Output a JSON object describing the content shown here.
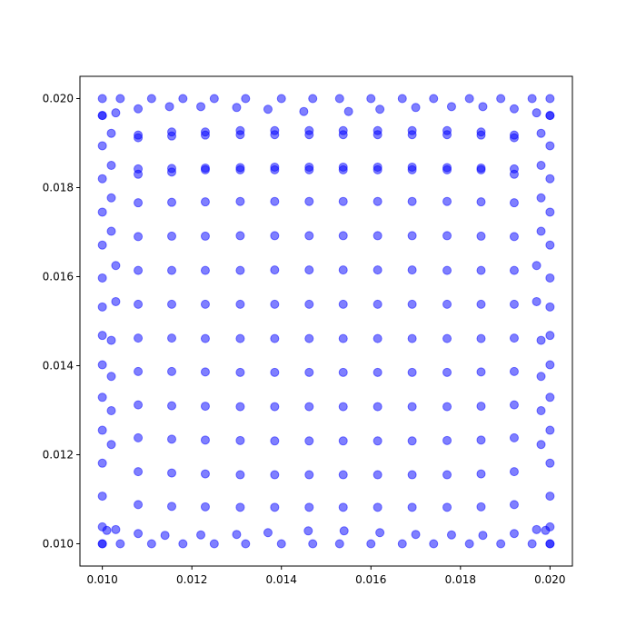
{
  "chart_data": {
    "type": "scatter",
    "title": "",
    "xlabel": "",
    "ylabel": "",
    "xlim": [
      0.0095,
      0.0205
    ],
    "ylim": [
      0.0095,
      0.0205
    ],
    "xticks": [
      "0.010",
      "0.012",
      "0.014",
      "0.016",
      "0.018",
      "0.020"
    ],
    "yticks": [
      "0.010",
      "0.012",
      "0.014",
      "0.016",
      "0.018",
      "0.020"
    ],
    "grid": false,
    "legend": "none",
    "marker_color": "#0000ff",
    "marker_alpha": 0.5,
    "series": [
      {
        "x": [
          0.01,
          0.0104,
          0.0111,
          0.0118,
          0.0125,
          0.0132,
          0.014,
          0.0147,
          0.0153,
          0.016,
          0.0167,
          0.0174,
          0.0182,
          0.0189,
          0.0196,
          0.02,
          0.01,
          0.0103,
          0.0108,
          0.0115,
          0.0122,
          0.013,
          0.0137,
          0.0145,
          0.0155,
          0.0162,
          0.017,
          0.0178,
          0.0185,
          0.0192,
          0.0197,
          0.02,
          0.01,
          0.01,
          0.01,
          0.01,
          0.01,
          0.01,
          0.01,
          0.01,
          0.01,
          0.01,
          0.01,
          0.01,
          0.01,
          0.01,
          0.01,
          0.0102,
          0.0102,
          0.0102,
          0.0102,
          0.0103,
          0.0103,
          0.0102,
          0.0102,
          0.0102,
          0.0102,
          0.02,
          0.02,
          0.02,
          0.02,
          0.02,
          0.02,
          0.02,
          0.02,
          0.02,
          0.02,
          0.02,
          0.02,
          0.02,
          0.02,
          0.02,
          0.0198,
          0.0198,
          0.0198,
          0.0198,
          0.0197,
          0.0197,
          0.0198,
          0.0198,
          0.0198,
          0.0198,
          0.0101,
          0.0103,
          0.0108,
          0.0114,
          0.0122,
          0.013,
          0.0137,
          0.0146,
          0.0154,
          0.0162,
          0.017,
          0.0178,
          0.0185,
          0.0192,
          0.0197,
          0.0199,
          0.01,
          0.0104,
          0.0111,
          0.0118,
          0.0125,
          0.0132,
          0.014,
          0.0147,
          0.0153,
          0.016,
          0.0167,
          0.0174,
          0.0182,
          0.0189,
          0.0196,
          0.02,
          0.0108,
          0.0108,
          0.0108,
          0.0108,
          0.0108,
          0.0108,
          0.0108,
          0.0108,
          0.0108,
          0.0108,
          0.0108,
          0.0108,
          0.0108,
          0.0108,
          0.01155,
          0.01155,
          0.01155,
          0.01155,
          0.01155,
          0.01155,
          0.01155,
          0.01155,
          0.01155,
          0.01155,
          0.01155,
          0.01155,
          0.01155,
          0.01155,
          0.0123,
          0.0123,
          0.0123,
          0.0123,
          0.0123,
          0.0123,
          0.0123,
          0.0123,
          0.0123,
          0.0123,
          0.0123,
          0.0123,
          0.0123,
          0.0123,
          0.01308,
          0.01308,
          0.01308,
          0.01308,
          0.01308,
          0.01308,
          0.01308,
          0.01308,
          0.01308,
          0.01308,
          0.01308,
          0.01308,
          0.01308,
          0.01308,
          0.01385,
          0.01385,
          0.01385,
          0.01385,
          0.01385,
          0.01385,
          0.01385,
          0.01385,
          0.01385,
          0.01385,
          0.01385,
          0.01385,
          0.01385,
          0.01385,
          0.01462,
          0.01462,
          0.01462,
          0.01462,
          0.01462,
          0.01462,
          0.01462,
          0.01462,
          0.01462,
          0.01462,
          0.01462,
          0.01462,
          0.01462,
          0.01462,
          0.01538,
          0.01538,
          0.01538,
          0.01538,
          0.01538,
          0.01538,
          0.01538,
          0.01538,
          0.01538,
          0.01538,
          0.01538,
          0.01538,
          0.01538,
          0.01538,
          0.01615,
          0.01615,
          0.01615,
          0.01615,
          0.01615,
          0.01615,
          0.01615,
          0.01615,
          0.01615,
          0.01615,
          0.01615,
          0.01615,
          0.01615,
          0.01615,
          0.01692,
          0.01692,
          0.01692,
          0.01692,
          0.01692,
          0.01692,
          0.01692,
          0.01692,
          0.01692,
          0.01692,
          0.01692,
          0.01692,
          0.01692,
          0.01692,
          0.0177,
          0.0177,
          0.0177,
          0.0177,
          0.0177,
          0.0177,
          0.0177,
          0.0177,
          0.0177,
          0.0177,
          0.0177,
          0.0177,
          0.0177,
          0.0177,
          0.01846,
          0.01846,
          0.01846,
          0.01846,
          0.01846,
          0.01846,
          0.01846,
          0.01846,
          0.01846,
          0.01846,
          0.01846,
          0.01846,
          0.01846,
          0.01846,
          0.0192,
          0.0192,
          0.0192,
          0.0192,
          0.0192,
          0.0192,
          0.0192,
          0.0192,
          0.0192,
          0.0192,
          0.0192,
          0.0192,
          0.0192,
          0.0192
        ],
        "y": [
          0.02,
          0.02,
          0.02,
          0.02,
          0.02,
          0.02,
          0.02,
          0.02,
          0.02,
          0.02,
          0.02,
          0.02,
          0.02,
          0.02,
          0.02,
          0.02,
          0.01962,
          0.01968,
          0.01977,
          0.01982,
          0.01982,
          0.0198,
          0.01976,
          0.01971,
          0.01971,
          0.01976,
          0.0198,
          0.01982,
          0.01982,
          0.01977,
          0.01968,
          0.01962,
          0.01894,
          0.0182,
          0.01745,
          0.01671,
          0.01597,
          0.01532,
          0.01468,
          0.01402,
          0.01329,
          0.01255,
          0.01181,
          0.01107,
          0.01038,
          0.01,
          0.01962,
          0.01922,
          0.0185,
          0.01777,
          0.01702,
          0.01625,
          0.01544,
          0.01457,
          0.01376,
          0.01299,
          0.01223,
          0.01894,
          0.0182,
          0.01745,
          0.01671,
          0.01597,
          0.01532,
          0.01468,
          0.01402,
          0.01329,
          0.01255,
          0.01181,
          0.01107,
          0.01038,
          0.01,
          0.01962,
          0.01922,
          0.0185,
          0.01777,
          0.01702,
          0.01625,
          0.01544,
          0.01457,
          0.01376,
          0.01299,
          0.01223,
          0.0103,
          0.01032,
          0.01023,
          0.01019,
          0.0102,
          0.01021,
          0.01025,
          0.01029,
          0.01029,
          0.01025,
          0.01021,
          0.0102,
          0.01019,
          0.01023,
          0.01032,
          0.0103,
          0.01,
          0.01,
          0.01,
          0.01,
          0.01,
          0.01,
          0.01,
          0.01,
          0.01,
          0.01,
          0.01,
          0.01,
          0.01,
          0.01,
          0.01,
          0.01,
          0.01912,
          0.01842,
          0.01766,
          0.0169,
          0.01614,
          0.01538,
          0.01462,
          0.01387,
          0.01312,
          0.01238,
          0.01162,
          0.01088,
          0.01918,
          0.0183,
          0.01916,
          0.01843,
          0.01767,
          0.01691,
          0.01614,
          0.01538,
          0.01462,
          0.01387,
          0.0131,
          0.01235,
          0.01159,
          0.01084,
          0.01925,
          0.01835,
          0.01918,
          0.01844,
          0.01768,
          0.01691,
          0.01614,
          0.01538,
          0.01461,
          0.01386,
          0.01309,
          0.01233,
          0.01157,
          0.01083,
          0.01925,
          0.0184,
          0.01919,
          0.01845,
          0.01769,
          0.01692,
          0.01614,
          0.01538,
          0.01461,
          0.01385,
          0.01308,
          0.01232,
          0.01155,
          0.01082,
          0.01928,
          0.0184,
          0.01919,
          0.01846,
          0.01769,
          0.01692,
          0.01615,
          0.01538,
          0.01461,
          0.01385,
          0.01308,
          0.01231,
          0.01155,
          0.01082,
          0.01928,
          0.0184,
          0.01919,
          0.01846,
          0.01769,
          0.01692,
          0.01615,
          0.01538,
          0.01461,
          0.01385,
          0.01308,
          0.01231,
          0.01155,
          0.01082,
          0.01928,
          0.0184,
          0.01919,
          0.01846,
          0.01769,
          0.01692,
          0.01615,
          0.01538,
          0.01461,
          0.01385,
          0.01308,
          0.01231,
          0.01155,
          0.01082,
          0.01928,
          0.0184,
          0.01919,
          0.01846,
          0.01769,
          0.01692,
          0.01615,
          0.01538,
          0.01461,
          0.01385,
          0.01308,
          0.01231,
          0.01155,
          0.01082,
          0.01928,
          0.0184,
          0.01919,
          0.01846,
          0.01769,
          0.01692,
          0.01615,
          0.01538,
          0.01461,
          0.01385,
          0.01308,
          0.01231,
          0.01155,
          0.01082,
          0.01928,
          0.0184,
          0.01919,
          0.01845,
          0.01769,
          0.01692,
          0.01614,
          0.01538,
          0.01461,
          0.01385,
          0.01308,
          0.01232,
          0.01155,
          0.01082,
          0.01928,
          0.0184,
          0.01918,
          0.01844,
          0.01768,
          0.01691,
          0.01614,
          0.01538,
          0.01461,
          0.01386,
          0.01309,
          0.01233,
          0.01157,
          0.01083,
          0.01925,
          0.0184,
          0.01912,
          0.01842,
          0.01766,
          0.0169,
          0.01614,
          0.01538,
          0.01462,
          0.01387,
          0.01312,
          0.01238,
          0.01162,
          0.01088,
          0.01918,
          0.0183
        ]
      }
    ]
  }
}
